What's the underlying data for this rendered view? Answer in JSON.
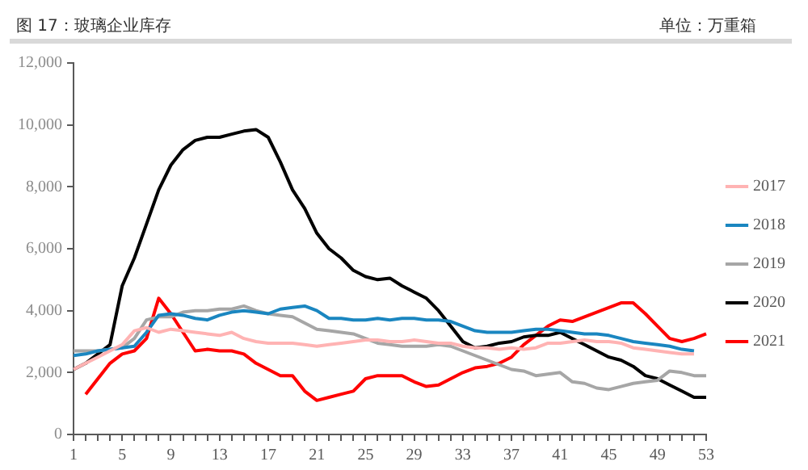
{
  "chart_data": {
    "type": "line",
    "title": "图 17：玻璃企业库存",
    "annotations": [
      "单位：万重箱"
    ],
    "categories": [
      "1",
      null,
      null,
      null,
      "5",
      null,
      null,
      null,
      "9",
      null,
      null,
      null,
      "13",
      null,
      null,
      null,
      "17",
      null,
      null,
      null,
      "21",
      null,
      null,
      null,
      "25",
      null,
      null,
      null,
      "29",
      null,
      null,
      null,
      "33",
      null,
      null,
      null,
      "37",
      null,
      null,
      null,
      "41",
      null,
      null,
      null,
      "45",
      null,
      null,
      null,
      "49",
      null,
      null,
      null,
      "53"
    ],
    "ylim": [
      0,
      12000
    ],
    "yticks": [
      {
        "value": 0,
        "label": "0"
      },
      {
        "value": 2000,
        "label": "2,000"
      },
      {
        "value": 4000,
        "label": "4,000"
      },
      {
        "value": 6000,
        "label": "6,000"
      },
      {
        "value": 8000,
        "label": "8,000"
      },
      {
        "value": 10000,
        "label": "10,000"
      },
      {
        "value": 12000,
        "label": "12,000"
      }
    ],
    "grid": false,
    "legend": "right",
    "marker": "none",
    "line_style": "solid",
    "series": [
      {
        "name": "2017",
        "color": "#ffb3b3",
        "values": [
          2100,
          2300,
          2500,
          2700,
          2900,
          3350,
          3450,
          3300,
          3400,
          3350,
          3300,
          3250,
          3200,
          3300,
          3100,
          3000,
          2950,
          2950,
          2950,
          2900,
          2850,
          2900,
          2950,
          3000,
          3050,
          3050,
          3000,
          3000,
          3050,
          3000,
          2950,
          2950,
          2850,
          2800,
          2800,
          2750,
          2800,
          2750,
          2800,
          2950,
          2950,
          3000,
          3050,
          3000,
          3000,
          2950,
          2800,
          2750,
          2700,
          2650,
          2600,
          2600,
          null
        ]
      },
      {
        "name": "2018",
        "color": "#1a86c0",
        "values": [
          2550,
          2600,
          2700,
          2750,
          2800,
          2850,
          3300,
          3850,
          3900,
          3850,
          3750,
          3700,
          3850,
          3950,
          4000,
          3950,
          3900,
          4050,
          4100,
          4150,
          4000,
          3750,
          3750,
          3700,
          3700,
          3750,
          3700,
          3750,
          3750,
          3700,
          3700,
          3650,
          3500,
          3350,
          3300,
          3300,
          3300,
          3350,
          3400,
          3400,
          3350,
          3300,
          3250,
          3250,
          3200,
          3100,
          3000,
          2950,
          2900,
          2850,
          2750,
          2700,
          null
        ]
      },
      {
        "name": "2019",
        "color": "#a6a6a6",
        "values": [
          2700,
          2700,
          2700,
          2750,
          2800,
          3100,
          3700,
          3800,
          3800,
          3950,
          4000,
          4000,
          4050,
          4050,
          4150,
          4000,
          3900,
          3850,
          3800,
          3600,
          3400,
          3350,
          3300,
          3250,
          3100,
          2950,
          2900,
          2850,
          2850,
          2850,
          2900,
          2850,
          2700,
          2550,
          2400,
          2250,
          2100,
          2050,
          1900,
          1950,
          2000,
          1700,
          1650,
          1500,
          1450,
          1550,
          1650,
          1700,
          1750,
          2050,
          2000,
          1900,
          1900
        ]
      },
      {
        "name": "2020",
        "color": "#000000",
        "values": [
          2100,
          2300,
          2600,
          2900,
          4800,
          5700,
          6800,
          7900,
          8700,
          9200,
          9500,
          9600,
          9600,
          9700,
          9800,
          9850,
          9600,
          8800,
          7900,
          7300,
          6500,
          6000,
          5700,
          5300,
          5100,
          5000,
          5050,
          4800,
          4600,
          4400,
          4000,
          3500,
          3000,
          2800,
          2850,
          2950,
          3000,
          3150,
          3200,
          3200,
          3300,
          3100,
          2900,
          2700,
          2500,
          2400,
          2200,
          1900,
          1800,
          1600,
          1400,
          1200,
          1200
        ]
      },
      {
        "name": "2021",
        "color": "#ff0000",
        "values": [
          null,
          1300,
          1800,
          2300,
          2600,
          2700,
          3100,
          4400,
          3900,
          3300,
          2700,
          2750,
          2700,
          2700,
          2600,
          2300,
          2100,
          1900,
          1900,
          1400,
          1100,
          1200,
          1300,
          1400,
          1800,
          1900,
          1900,
          1900,
          1700,
          1550,
          1600,
          1800,
          2000,
          2150,
          2200,
          2300,
          2500,
          2900,
          3200,
          3500,
          3700,
          3650,
          3800,
          3950,
          4100,
          4250,
          4250,
          3900,
          3500,
          3100,
          3000,
          3100,
          3250
        ]
      }
    ]
  }
}
